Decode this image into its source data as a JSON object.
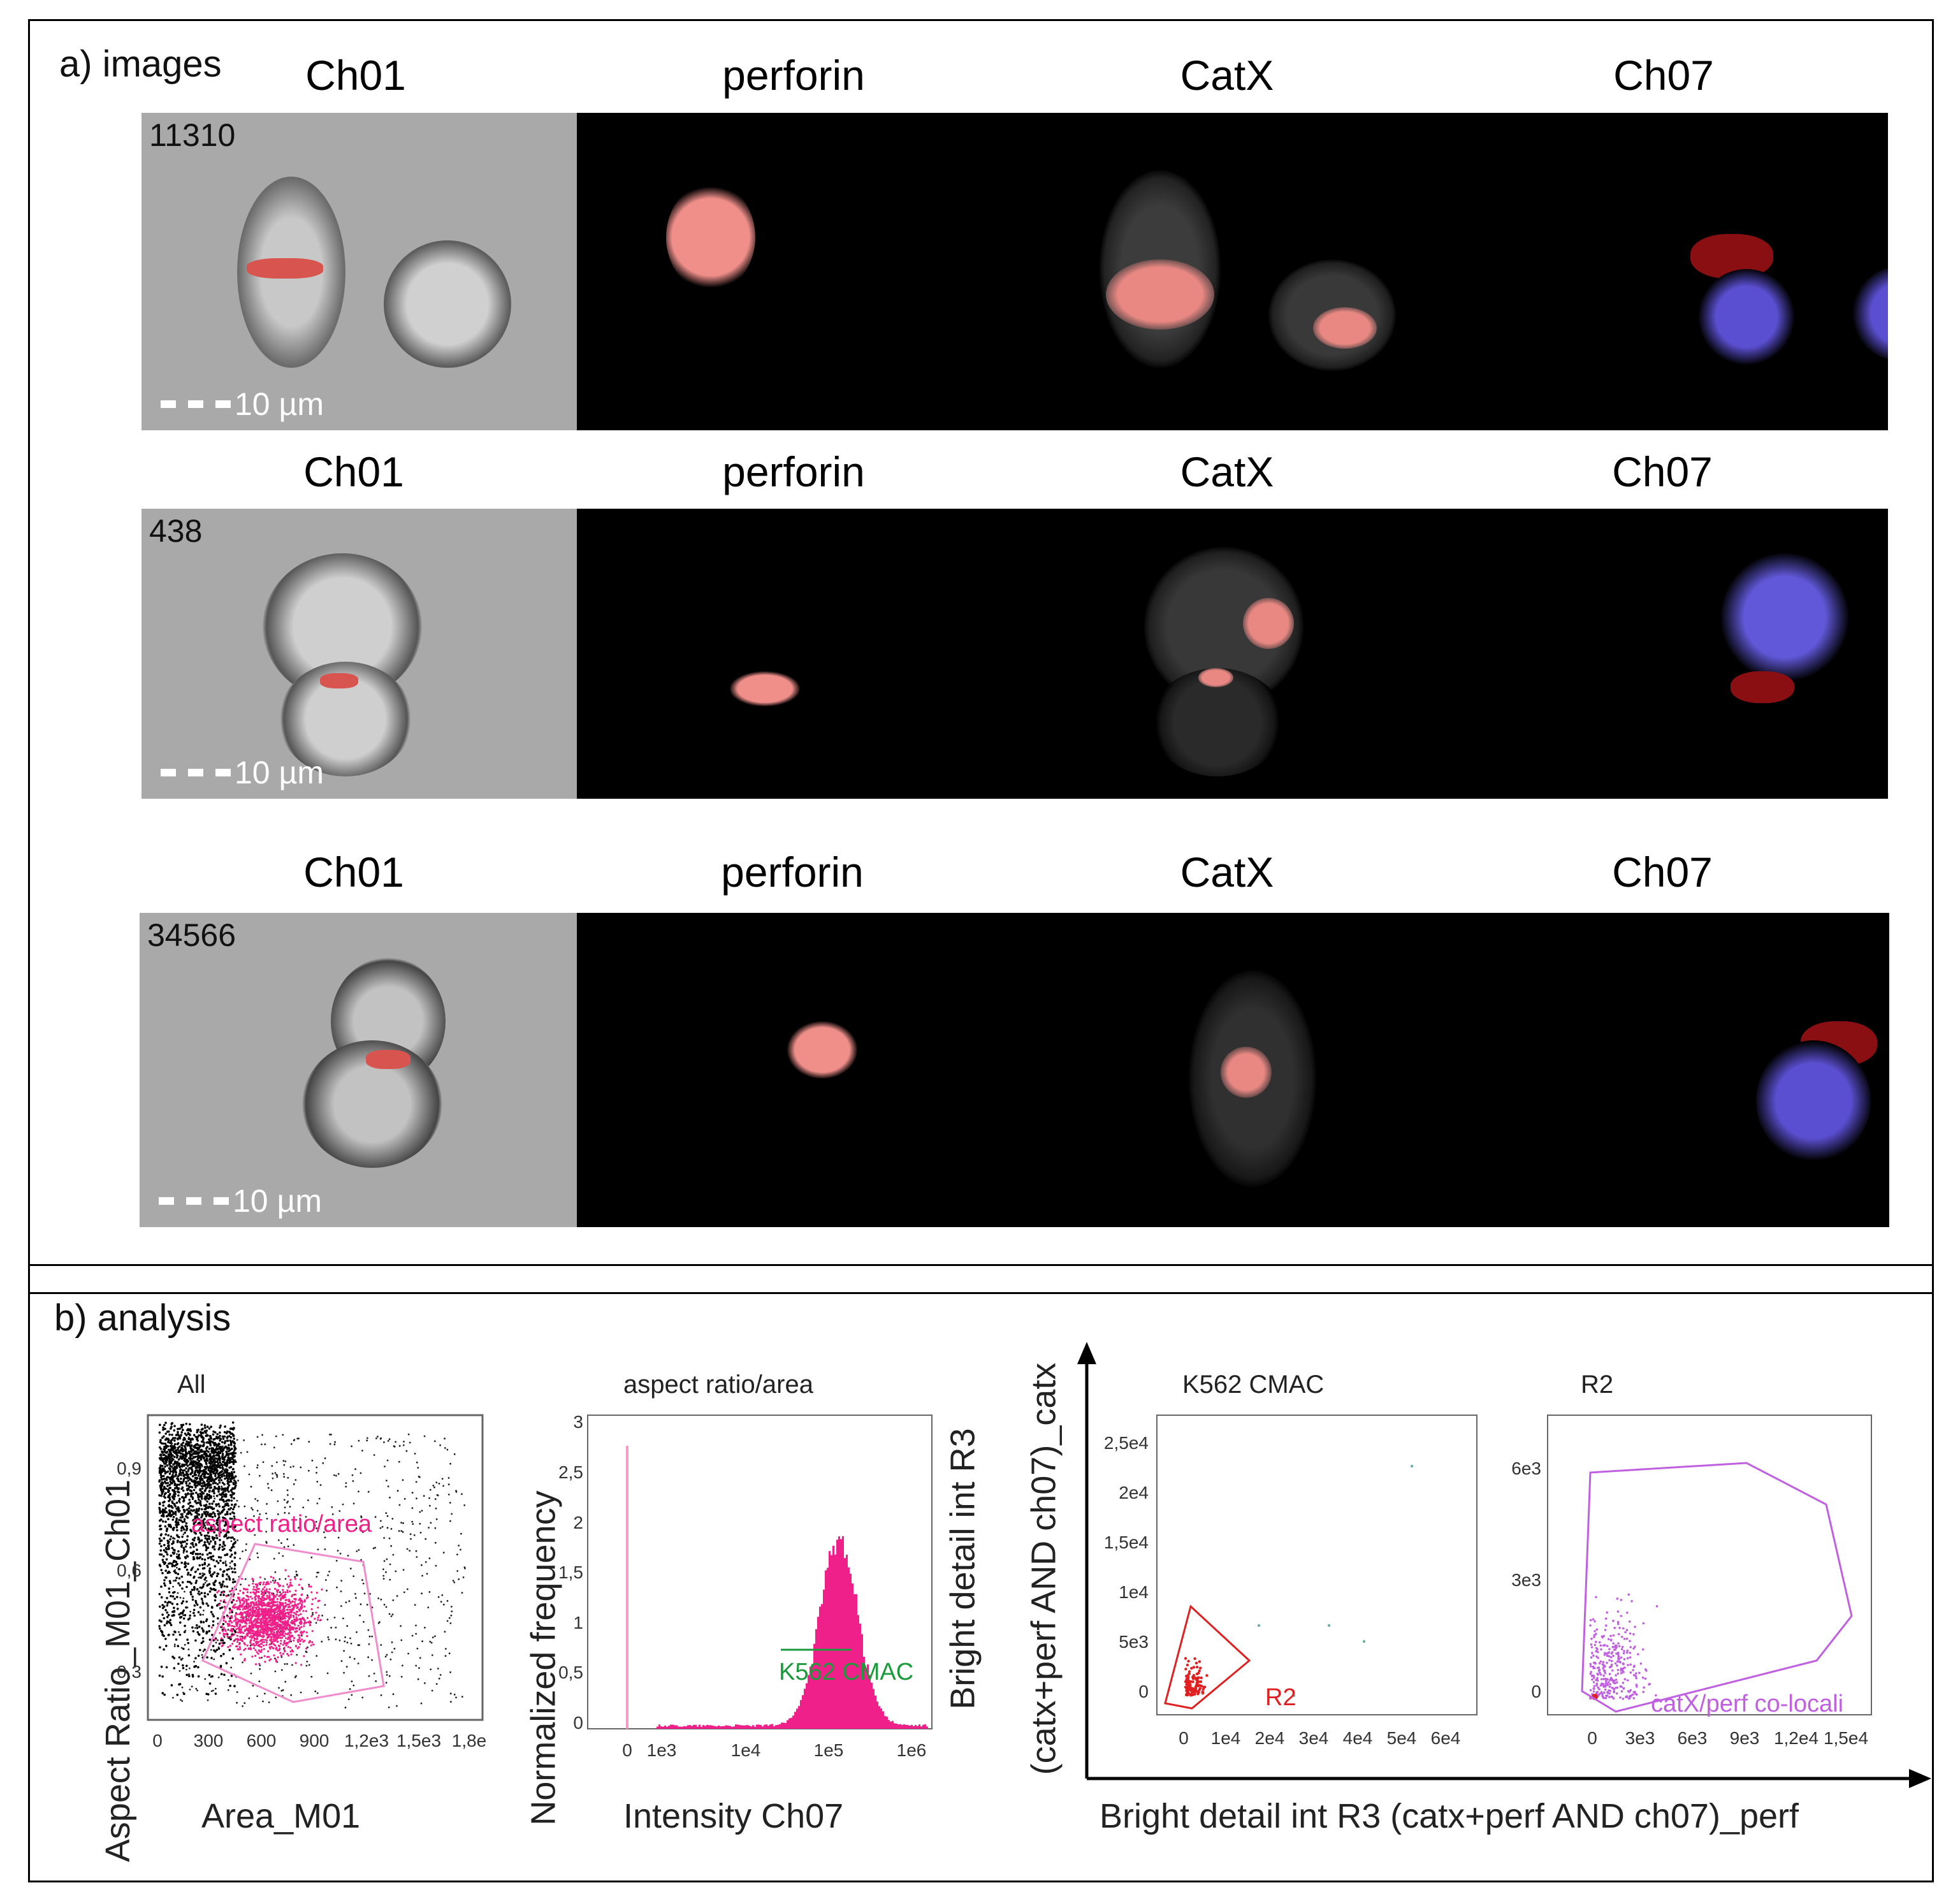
{
  "panel_a": {
    "label": "a) images",
    "channels": [
      "Ch01",
      "perforin",
      "CatX",
      "Ch07"
    ],
    "rows": [
      {
        "event_id": "11310",
        "scale": "10 µm"
      },
      {
        "event_id": "438",
        "scale": "10 µm"
      },
      {
        "event_id": "34566",
        "scale": "10 µm"
      }
    ]
  },
  "panel_b": {
    "label": "b) analysis",
    "colors": {
      "magenta": "#f0208a",
      "green": "#1a9a3a",
      "red": "#e02020",
      "violet": "#c060e0"
    },
    "plot1": {
      "title": "All",
      "xlabel": "Area_M01",
      "ylabel": "Aspect Ratio_M01_Ch01",
      "gate": "aspect ratio/area",
      "xticks": [
        "0",
        "300",
        "600",
        "900",
        "1,2e3",
        "1,5e3",
        "1,8e"
      ],
      "yticks": [
        "0,3",
        "0,6",
        "0,9"
      ]
    },
    "plot2": {
      "title": "aspect ratio/area",
      "xlabel": "Intensity Ch07",
      "ylabel": "Normalized frequency",
      "gate": "K562 CMAC",
      "xticks": [
        "0",
        "1e3",
        "1e4",
        "1e5",
        "1e6"
      ],
      "yticks": [
        "0",
        "0,5",
        "1",
        "1,5",
        "2",
        "2,5",
        "3"
      ]
    },
    "plot3": {
      "title": "K562 CMAC",
      "gate": "R2",
      "xticks": [
        "0",
        "1e4",
        "2e4",
        "3e4",
        "4e4",
        "5e4",
        "6e4"
      ],
      "yticks": [
        "0",
        "5e3",
        "1e4",
        "1,5e4",
        "2e4",
        "2,5e4"
      ]
    },
    "plot4": {
      "title": "R2",
      "gate": "catX/perf co-locali",
      "xticks": [
        "0",
        "3e3",
        "6e3",
        "9e3",
        "1,2e4",
        "1,5e4"
      ],
      "yticks": [
        "0",
        "3e3",
        "6e3"
      ]
    },
    "shared_ylabel_1": "Bright detail int R3",
    "shared_ylabel_2": "(catx+perf AND ch07)_catx",
    "shared_xlabel": "Bright detail int R3 (catx+perf AND ch07)_perf"
  }
}
